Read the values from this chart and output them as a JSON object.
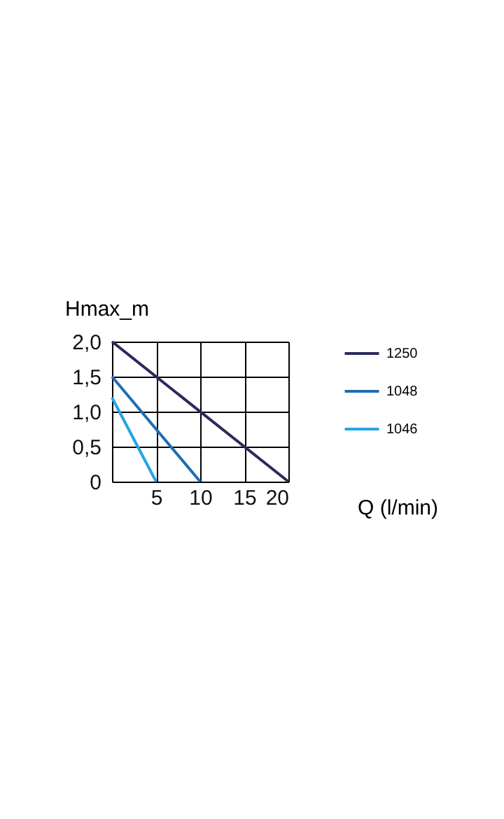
{
  "chart_data": {
    "type": "line",
    "xlabel": "Q (l/min)",
    "ylabel": "Hmax_m",
    "series": [
      {
        "name": "1250",
        "color": "#2b2a5c",
        "x": [
          0,
          20
        ],
        "values": [
          2.0,
          0
        ]
      },
      {
        "name": "1048",
        "color": "#1f6db3",
        "x": [
          0,
          10
        ],
        "values": [
          1.5,
          0
        ]
      },
      {
        "name": "1046",
        "color": "#27a4e2",
        "x": [
          0,
          5
        ],
        "values": [
          1.2,
          0
        ]
      }
    ],
    "xlim": [
      0,
      20
    ],
    "xticks": [
      {
        "value": 0,
        "label": null
      },
      5,
      10,
      15,
      20
    ],
    "ylim": [
      0,
      2
    ],
    "yticks": [
      0,
      {
        "value": 0.5,
        "label": "0,5"
      },
      {
        "value": 1,
        "label": "1,0"
      },
      {
        "value": 1.5,
        "label": "1,5"
      },
      {
        "value": 2,
        "label": "2,0"
      }
    ],
    "grid": true,
    "legend": "right",
    "marker": "none",
    "line_style": "solid"
  }
}
